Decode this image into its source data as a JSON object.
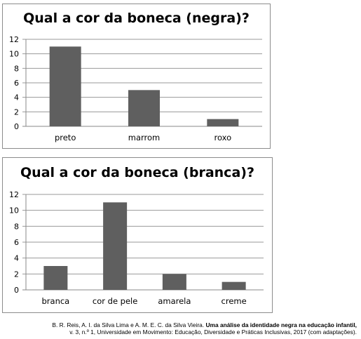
{
  "chart_data": [
    {
      "type": "bar",
      "title": "Qual a cor da boneca (negra)?",
      "categories": [
        "preto",
        "marrom",
        "roxo"
      ],
      "values": [
        11,
        5,
        1
      ],
      "ylim": [
        0,
        12
      ],
      "yticks": [
        "0",
        "2",
        "4",
        "6",
        "8",
        "10",
        "12"
      ],
      "grid": true,
      "bar_color": "#5f5f5f"
    },
    {
      "type": "bar",
      "title": "Qual a cor da boneca (branca)?",
      "categories": [
        "branca",
        "cor de pele",
        "amarela",
        "creme"
      ],
      "values": [
        3,
        11,
        2,
        1
      ],
      "ylim": [
        0,
        12
      ],
      "yticks": [
        "0",
        "2",
        "4",
        "6",
        "8",
        "10",
        "12"
      ],
      "grid": true,
      "bar_color": "#5f5f5f"
    }
  ],
  "citation": {
    "authors": "B. R. Reis, A. I. da Silva Lima e A. M. E. C. da Silva Vieira.",
    "title": "Uma análise da identidade negra na educação infantil,",
    "details": "v. 3, n.º 1, Universidade em Movimento: Educação, Diversidade e Práticas Inclusivas, 2017 (com adaptações)."
  }
}
